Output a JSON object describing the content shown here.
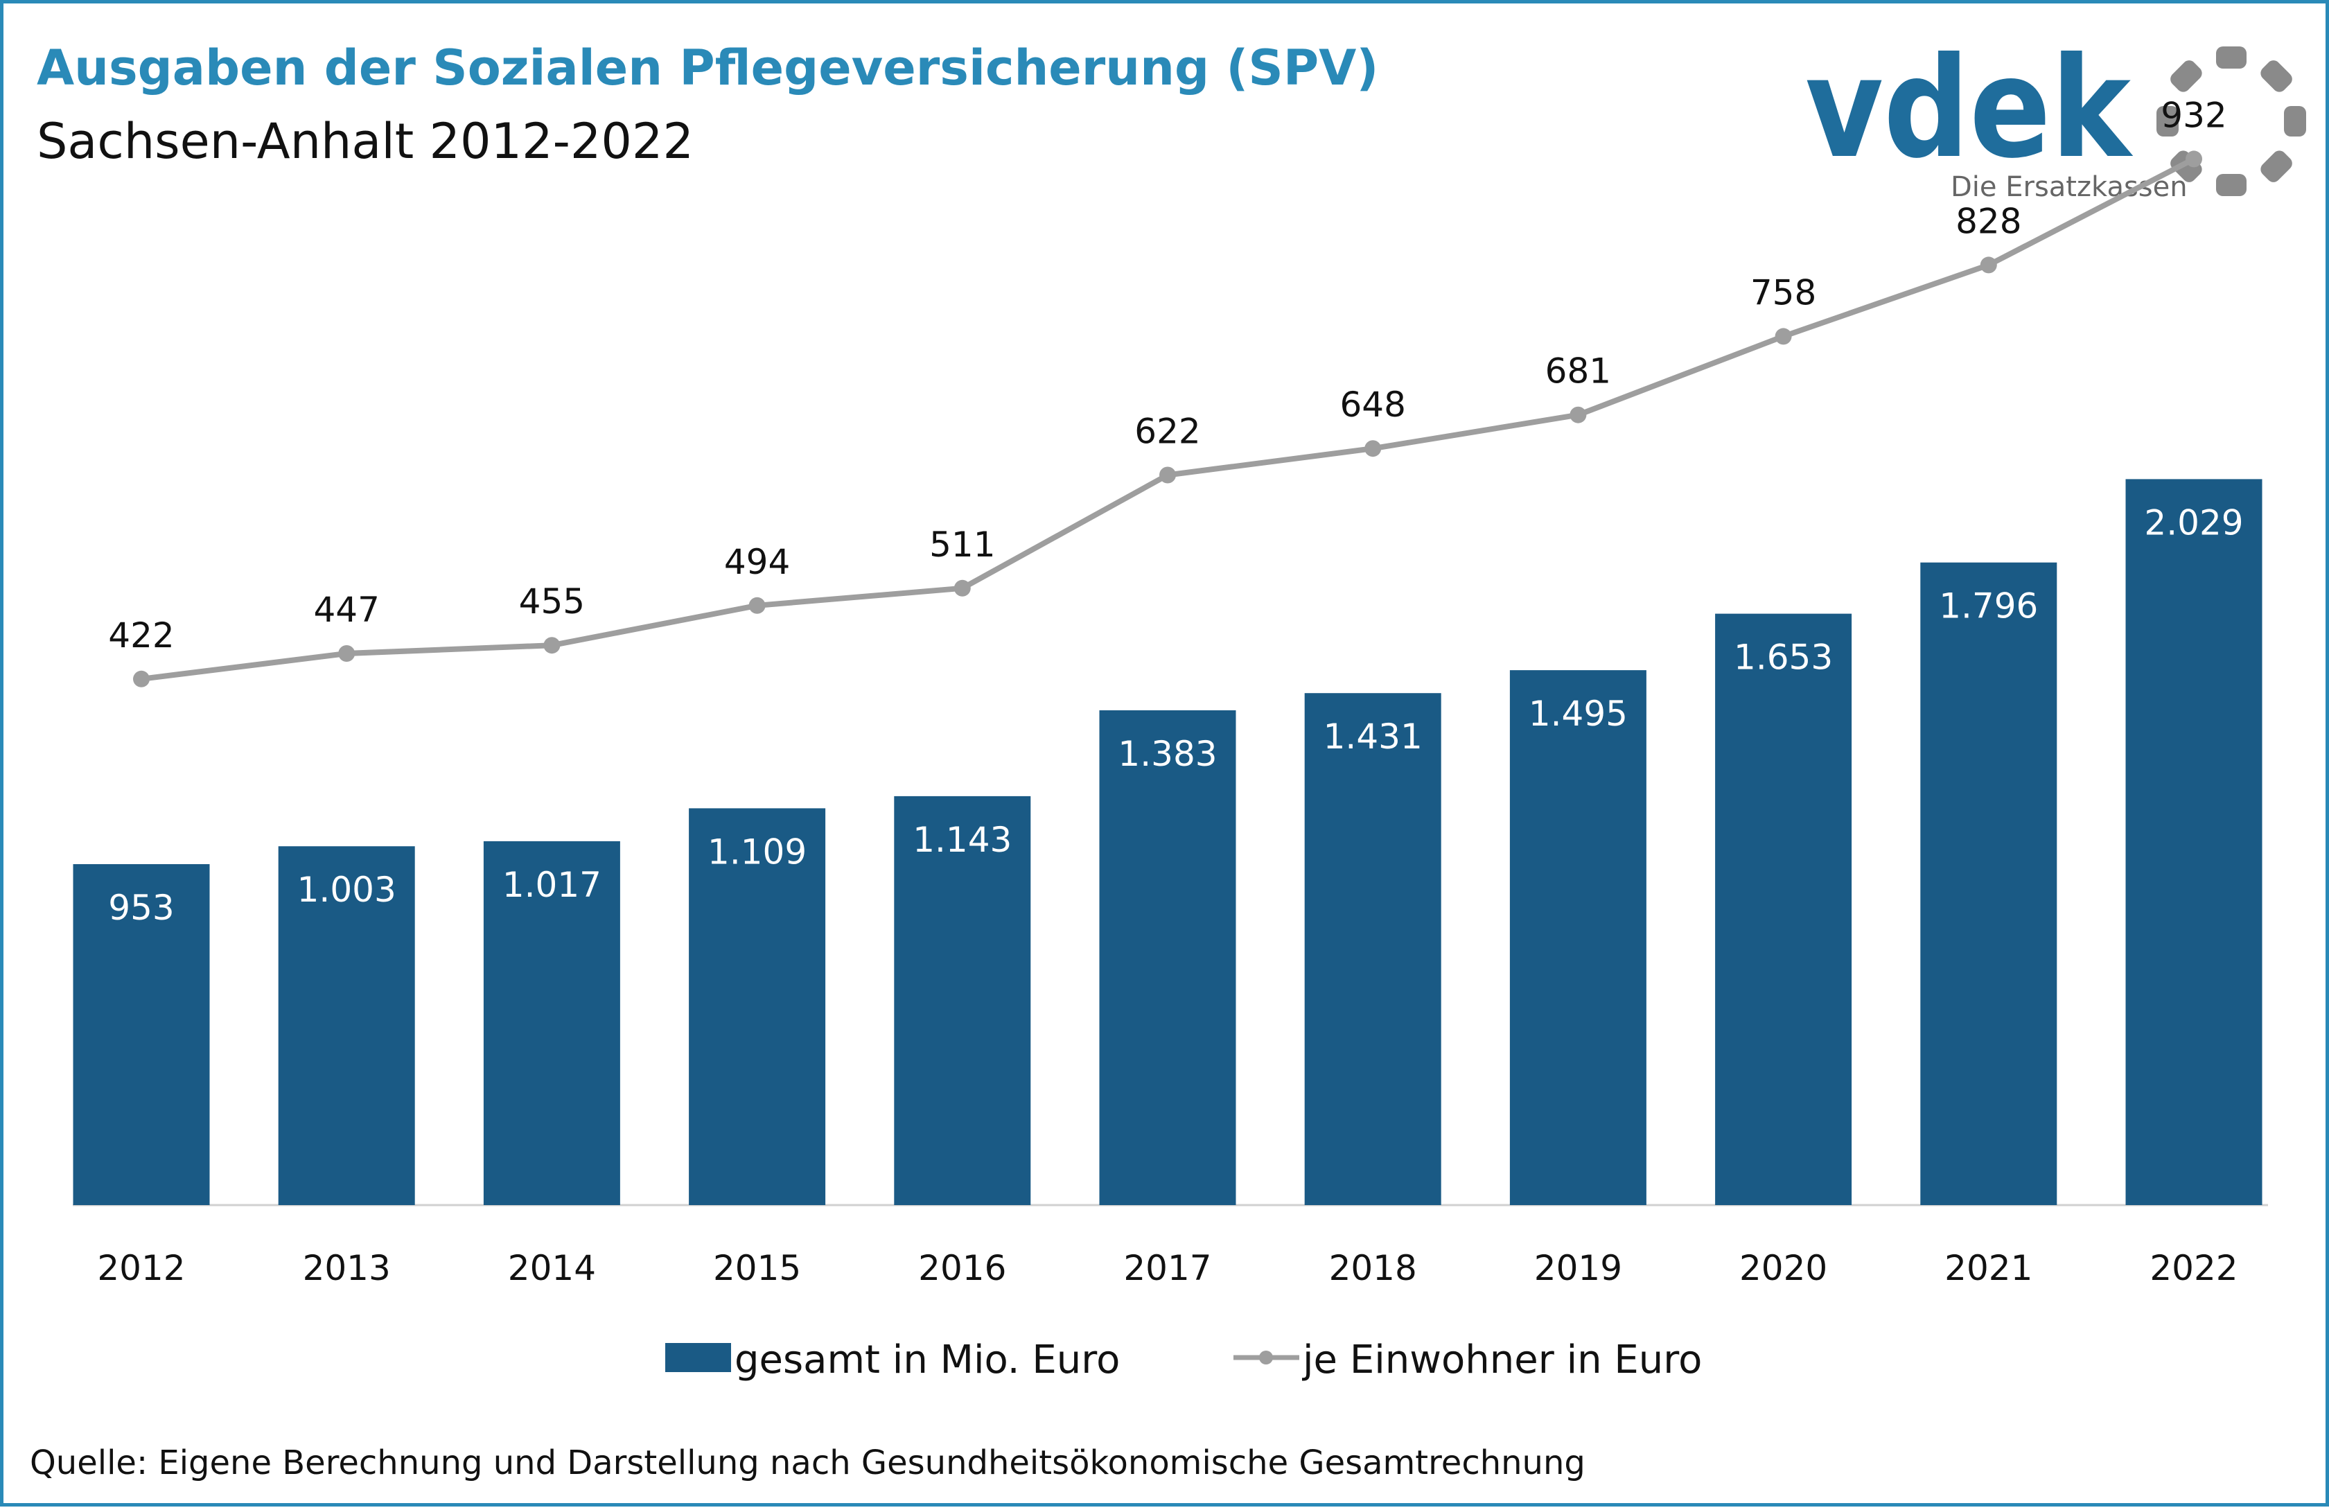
{
  "header": {
    "title": "Ausgaben der Sozialen Pflegeversicherung (SPV)",
    "subtitle": "Sachsen-Anhalt 2012-2022"
  },
  "logo": {
    "text": "vdek",
    "tagline": "Die Ersatzkassen",
    "text_color": "#1f6d9c",
    "ring_color": "#8a8a8a"
  },
  "footer": {
    "source": "Quelle: Eigene Berechnung und Darstellung nach Gesundheitsökonomische Gesamtrechnung"
  },
  "chart_data": {
    "type": "bar",
    "categories": [
      "2012",
      "2013",
      "2014",
      "2015",
      "2016",
      "2017",
      "2018",
      "2019",
      "2020",
      "2021",
      "2022"
    ],
    "series": [
      {
        "name": "gesamt in Mio. Euro",
        "type": "bar",
        "color": "#1a5a85",
        "values": [
          953,
          1003,
          1017,
          1109,
          1143,
          1383,
          1431,
          1495,
          1653,
          1796,
          2029
        ],
        "labels": [
          "953",
          "1.003",
          "1.017",
          "1.109",
          "1.143",
          "1.383",
          "1.431",
          "1.495",
          "1.653",
          "1.796",
          "2.029"
        ]
      },
      {
        "name": "je Einwohner in Euro",
        "type": "line",
        "color": "#9e9e9e",
        "values": [
          422,
          447,
          455,
          494,
          511,
          622,
          648,
          681,
          758,
          828,
          932
        ],
        "labels": [
          "422",
          "447",
          "455",
          "494",
          "511",
          "622",
          "648",
          "681",
          "758",
          "828",
          "932"
        ]
      }
    ],
    "legend_position": "bottom",
    "grid": false
  }
}
